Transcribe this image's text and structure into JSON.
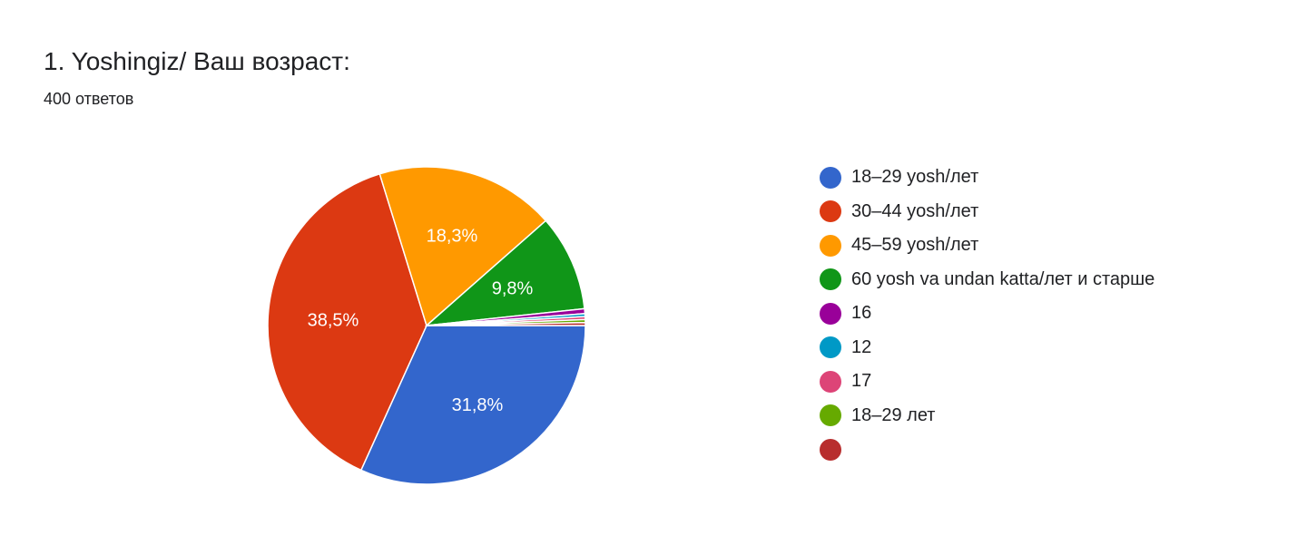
{
  "header": {
    "title": "1. Yoshingiz/ Ваш возраст:",
    "responses": "400 ответов"
  },
  "chart_data": {
    "type": "pie",
    "title": "1. Yoshingiz/ Ваш возраст:",
    "subtitle": "400 ответов",
    "legend_position": "right",
    "categories": [
      "18–29 yosh/лет",
      "30–44 yosh/лет",
      "45–59 yosh/лет",
      "60 yosh va undan katta/лет и старше",
      "16",
      "12",
      "17",
      "18–29 лет",
      ""
    ],
    "values": [
      31.8,
      38.5,
      18.3,
      9.8,
      0.5,
      0.3,
      0.3,
      0.3,
      0.3
    ],
    "value_labels": [
      "31,8%",
      "38,5%",
      "18,3%",
      "9,8%",
      "",
      "",
      "",
      "",
      ""
    ],
    "colors": [
      "#3366cc",
      "#dc3912",
      "#ff9900",
      "#109618",
      "#990099",
      "#0099c6",
      "#dd4477",
      "#66aa00",
      "#b82e2e"
    ]
  }
}
